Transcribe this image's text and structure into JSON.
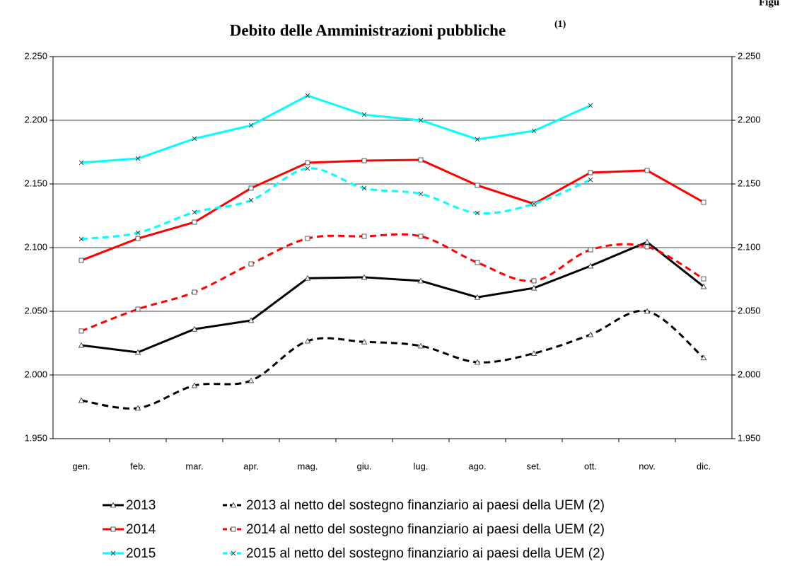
{
  "chart_data": {
    "type": "line",
    "title": "Debito delle Amministrazioni pubbliche",
    "title_note": "(1)",
    "figure_label": "Figu",
    "categories": [
      "gen.",
      "feb.",
      "mar.",
      "apr.",
      "mag.",
      "giu.",
      "lug.",
      "ago.",
      "set.",
      "ott.",
      "nov.",
      "dic."
    ],
    "ylim": [
      1950,
      2250
    ],
    "yticks": [
      {
        "value": 1950,
        "label": "1.950"
      },
      {
        "value": 2000,
        "label": "2.000"
      },
      {
        "value": 2050,
        "label": "2.050"
      },
      {
        "value": 2100,
        "label": "2.100"
      },
      {
        "value": 2150,
        "label": "2.150"
      },
      {
        "value": 2200,
        "label": "2.200"
      },
      {
        "value": 2250,
        "label": "2.250"
      }
    ],
    "y2lim": [
      1950,
      2250
    ],
    "y2ticks": [
      {
        "value": 1950,
        "label": "1.950"
      },
      {
        "value": 2000,
        "label": "2.000"
      },
      {
        "value": 2050,
        "label": "2.050"
      },
      {
        "value": 2100,
        "label": "2.100"
      },
      {
        "value": 2150,
        "label": "2.150"
      },
      {
        "value": 2200,
        "label": "2.200"
      },
      {
        "value": 2250,
        "label": "2.250"
      }
    ],
    "grid": true,
    "series": [
      {
        "name": "2013",
        "color": "#000000",
        "dashed": false,
        "smooth": false,
        "marker": "triangle",
        "values": [
          2023.3,
          2017.8,
          2036,
          2042.8,
          2076,
          2076.7,
          2073.9,
          2061,
          2068.3,
          2085.6,
          2104.4,
          2069.4
        ]
      },
      {
        "name": "2014",
        "color": "#ff0000",
        "dashed": false,
        "smooth": false,
        "marker": "square",
        "values": [
          2090,
          2107.2,
          2120,
          2146.7,
          2166.7,
          2168.3,
          2168.9,
          2148.9,
          2134.4,
          2158.9,
          2160.6,
          2135.6
        ]
      },
      {
        "name": "2015",
        "color": "#00ffff",
        "dashed": false,
        "smooth": false,
        "marker": "cross",
        "values": [
          2166.7,
          2170,
          2185.6,
          2196,
          2219.4,
          2204.4,
          2200,
          2185,
          2191.7,
          2211.7,
          null,
          null
        ]
      },
      {
        "name": "2013 al netto del sostegno finanziario ai paesi della UEM (2)",
        "color": "#000000",
        "dashed": true,
        "smooth": true,
        "marker": "triangle",
        "values": [
          1980,
          1974,
          1991.7,
          1995.6,
          2026.7,
          2026,
          2022.8,
          2010,
          2017,
          2031.7,
          2050,
          2013.5
        ]
      },
      {
        "name": "2014 al netto del sostegno finanziario ai paesi della UEM (2)",
        "color": "#ff0000",
        "dashed": true,
        "smooth": true,
        "marker": "square",
        "values": [
          2034.5,
          2051.7,
          2065,
          2087.2,
          2107.2,
          2108.9,
          2108.9,
          2088.3,
          2073.9,
          2098.3,
          2100.6,
          2075.5
        ]
      },
      {
        "name": "2015 al netto del sostegno finanziario ai paesi della UEM (2)",
        "color": "#00ffff",
        "dashed": true,
        "smooth": true,
        "marker": "cross",
        "values": [
          2106.7,
          2111.7,
          2127.8,
          2137.2,
          2162.2,
          2146.7,
          2142.2,
          2127.2,
          2134.4,
          2153.3,
          null,
          null
        ]
      }
    ]
  }
}
